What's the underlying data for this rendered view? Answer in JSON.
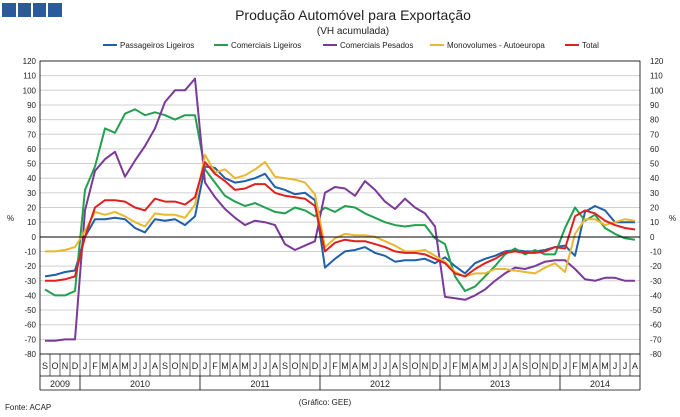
{
  "header": {
    "logo_colors": [
      "#2a5a9a",
      "#2a5a9a",
      "#2a5a9a",
      "#2a5a9a"
    ]
  },
  "footer": {
    "source": "Fonte: ACAP",
    "credit": "(Gráfico: GEE)"
  },
  "chart_data": {
    "type": "line",
    "title": "Produção Automóvel para Exportação",
    "subtitle": "(VH acumulada)",
    "ylabel_left": "%",
    "ylabel_right": "%",
    "ylim": [
      -80,
      120
    ],
    "ytick_step": 10,
    "grid": true,
    "legend_position": "top",
    "categories": [
      "S",
      "O",
      "N",
      "D",
      "J",
      "F",
      "M",
      "A",
      "M",
      "J",
      "J",
      "A",
      "S",
      "O",
      "N",
      "D",
      "J",
      "F",
      "M",
      "A",
      "M",
      "J",
      "J",
      "A",
      "S",
      "O",
      "N",
      "D",
      "J",
      "F",
      "M",
      "A",
      "M",
      "J",
      "J",
      "A",
      "S",
      "O",
      "N",
      "D",
      "J",
      "F",
      "M",
      "A",
      "M",
      "J",
      "J",
      "A",
      "S",
      "O",
      "N",
      "D",
      "J",
      "F",
      "M",
      "A",
      "M",
      "J",
      "J",
      "A"
    ],
    "years": [
      {
        "label": "2009",
        "start": 0,
        "end": 3
      },
      {
        "label": "2010",
        "start": 4,
        "end": 15
      },
      {
        "label": "2011",
        "start": 16,
        "end": 27
      },
      {
        "label": "2012",
        "start": 28,
        "end": 39
      },
      {
        "label": "2013",
        "start": 40,
        "end": 51
      },
      {
        "label": "2014",
        "start": 52,
        "end": 59
      }
    ],
    "series": [
      {
        "name": "Passageiros Ligeiros",
        "color": "#2060a8",
        "values": [
          -27,
          -26,
          -24,
          -23,
          0,
          12,
          12,
          13,
          12,
          6,
          3,
          12,
          11,
          12,
          8,
          14,
          48,
          47,
          40,
          37,
          38,
          40,
          43,
          34,
          32,
          29,
          30,
          25,
          -21,
          -15,
          -10,
          -9,
          -7,
          -11,
          -13,
          -17,
          -16,
          -16,
          -15,
          -18,
          -14,
          -20,
          -25,
          -18,
          -15,
          -13,
          -10,
          -9,
          -10,
          -10,
          -9,
          -7,
          -6,
          -13,
          17,
          21,
          18,
          10,
          10,
          10
        ]
      },
      {
        "name": "Comerciais Ligeiros",
        "color": "#22a050",
        "values": [
          -36,
          -40,
          -40,
          -37,
          32,
          48,
          74,
          71,
          84,
          87,
          83,
          85,
          83,
          80,
          83,
          83,
          46,
          37,
          28,
          24,
          21,
          23,
          20,
          17,
          16,
          20,
          18,
          14,
          20,
          17,
          21,
          20,
          16,
          13,
          10,
          8,
          7,
          8,
          8,
          -1,
          -5,
          -27,
          -37,
          -34,
          -27,
          -20,
          -12,
          -8,
          -12,
          -9,
          -12,
          -12,
          6,
          20,
          11,
          15,
          6,
          2,
          -1,
          -2
        ]
      },
      {
        "name": "Comerciais Pesados",
        "color": "#7a3a9a",
        "values": [
          -71,
          -71,
          -70,
          -70,
          18,
          45,
          53,
          58,
          41,
          52,
          62,
          74,
          92,
          100,
          100,
          108,
          37,
          27,
          19,
          13,
          8,
          11,
          10,
          8,
          -5,
          -9,
          -6,
          -3,
          30,
          34,
          33,
          28,
          38,
          32,
          24,
          19,
          26,
          20,
          16,
          7,
          -41,
          -42,
          -43,
          -40,
          -36,
          -30,
          -25,
          -21,
          -22,
          -20,
          -17,
          -16,
          -16,
          -22,
          -29,
          -30,
          -28,
          -28,
          -30,
          -30
        ]
      },
      {
        "name": "Monovolumes - Autoeuropa",
        "color": "#e8b830",
        "values": [
          -10,
          -10,
          -9,
          -7,
          4,
          17,
          15,
          17,
          14,
          10,
          7,
          16,
          15,
          15,
          13,
          22,
          56,
          44,
          46,
          40,
          42,
          46,
          51,
          41,
          40,
          39,
          37,
          29,
          -7,
          -1,
          2,
          1,
          1,
          0,
          -3,
          -6,
          -10,
          -10,
          -9,
          -13,
          -17,
          -24,
          -27,
          -25,
          -25,
          -22,
          -22,
          -23,
          -24,
          -25,
          -21,
          -18,
          -24,
          2,
          12,
          12,
          8,
          10,
          12,
          11
        ]
      },
      {
        "name": "Total",
        "color": "#e02020",
        "values": [
          -30,
          -30,
          -29,
          -27,
          0,
          20,
          25,
          25,
          24,
          20,
          18,
          26,
          24,
          24,
          22,
          27,
          51,
          43,
          38,
          32,
          33,
          36,
          36,
          30,
          28,
          27,
          26,
          21,
          -10,
          -4,
          -2,
          -3,
          -3,
          -5,
          -7,
          -10,
          -11,
          -11,
          -12,
          -15,
          -18,
          -25,
          -27,
          -22,
          -18,
          -15,
          -11,
          -10,
          -11,
          -11,
          -10,
          -7,
          -8,
          14,
          18,
          16,
          11,
          8,
          6,
          5
        ]
      }
    ]
  }
}
